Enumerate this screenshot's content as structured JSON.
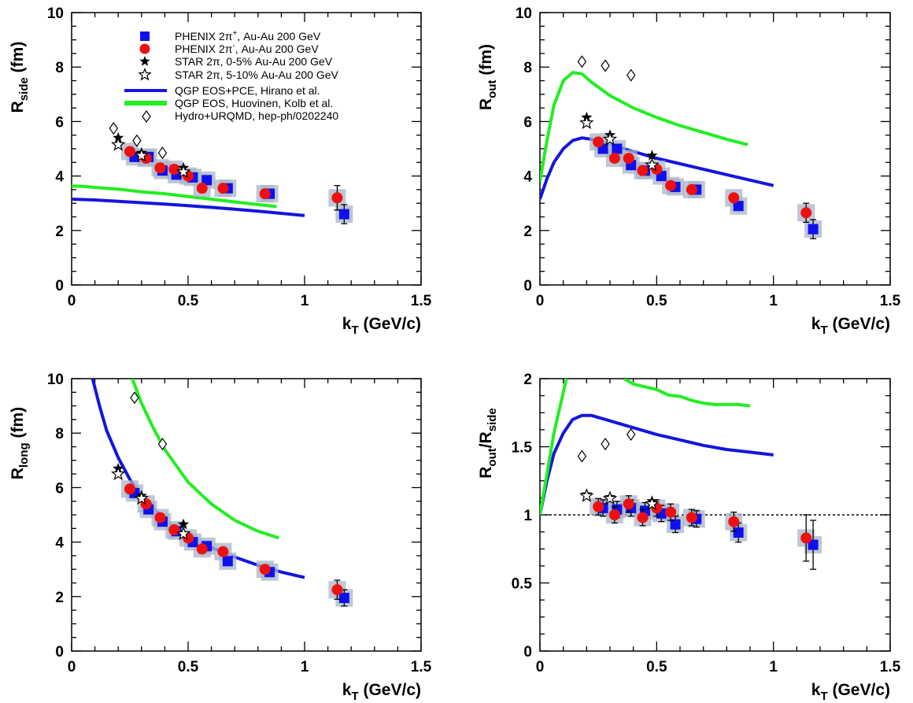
{
  "colors": {
    "phenix_plus": "#1010ee",
    "phenix_minus": "#ee1010",
    "qgp_pce": "#1515dd",
    "qgp_huovinen": "#22ee22",
    "syst_box": "#a8b4c8",
    "star": "#000000"
  },
  "legend": {
    "phenix_plus": {
      "pre": "PHENIX 2π",
      "sup": "+",
      "post": ", Au-Au 200 GeV"
    },
    "phenix_minus": {
      "pre": "PHENIX 2π",
      "sup": "-",
      "post": ", Au-Au 200 GeV"
    },
    "star_central": "STAR 2π, 0-5% Au-Au 200 GeV",
    "star_semi": "STAR 2π, 5-10% Au-Au 200 GeV",
    "qgp_pce": "QGP EOS+PCE, Hirano et al.",
    "qgp_huovinen": "QGP EOS, Huovinen, Kolb et al.",
    "urqmd": "Hydro+URQMD, hep-ph/0202240"
  },
  "chart_data": [
    {
      "id": "rside",
      "type": "scatter",
      "ylabel": {
        "main": "R",
        "sub": "side",
        "post": " (fm)"
      },
      "xlabel": {
        "main": "k",
        "sub": "T",
        "post": " (GeV/c)"
      },
      "xlim": [
        0,
        1.5
      ],
      "ylim": [
        0,
        10
      ],
      "xticks": [
        0,
        0.5,
        1,
        1.5
      ],
      "xtick_labels": [
        "0",
        "0.5",
        "1",
        "1.5"
      ],
      "yticks": [
        0,
        2,
        4,
        6,
        8,
        10
      ],
      "ytick_labels": [
        "0",
        "2",
        "4",
        "6",
        "8",
        "10"
      ],
      "reference_line": null,
      "series": [
        {
          "name": "PHENIX 2π+",
          "marker": "square",
          "x": [
            0.27,
            0.33,
            0.39,
            0.45,
            0.52,
            0.58,
            0.67,
            0.85,
            1.17
          ],
          "y": [
            4.7,
            4.7,
            4.2,
            4.05,
            3.95,
            3.85,
            3.55,
            3.35,
            2.6
          ],
          "err": [
            0,
            0,
            0,
            0,
            0,
            0,
            0,
            0,
            0.35
          ]
        },
        {
          "name": "PHENIX 2π-",
          "marker": "circle",
          "x": [
            0.25,
            0.32,
            0.38,
            0.44,
            0.5,
            0.56,
            0.65,
            0.83,
            1.14
          ],
          "y": [
            4.9,
            4.65,
            4.3,
            4.25,
            4.0,
            3.55,
            3.55,
            3.35,
            3.2
          ],
          "err": [
            0,
            0,
            0,
            0,
            0,
            0,
            0,
            0,
            0.45
          ]
        },
        {
          "name": "STAR 2π 0-5%",
          "marker": "star-filled",
          "x": [
            0.2,
            0.3,
            0.48
          ],
          "y": [
            5.4,
            4.85,
            4.3
          ]
        },
        {
          "name": "STAR 2π 5-10%",
          "marker": "star-open",
          "x": [
            0.2,
            0.3,
            0.48
          ],
          "y": [
            5.15,
            4.75,
            4.15
          ]
        },
        {
          "name": "Hydro+URQMD",
          "marker": "diamond",
          "x": [
            0.18,
            0.28,
            0.39
          ],
          "y": [
            5.75,
            5.3,
            4.85
          ]
        },
        {
          "name": "QGP EOS+PCE",
          "type": "line",
          "color_key": "qgp_pce",
          "x": [
            0,
            0.1,
            0.2,
            0.3,
            0.4,
            0.5,
            0.6,
            0.7,
            0.8,
            0.9,
            1.0
          ],
          "y": [
            3.15,
            3.12,
            3.07,
            3.02,
            2.97,
            2.91,
            2.85,
            2.78,
            2.71,
            2.63,
            2.55
          ]
        },
        {
          "name": "QGP EOS Huovinen",
          "type": "line",
          "color_key": "qgp_huovinen",
          "x": [
            0,
            0.05,
            0.1,
            0.15,
            0.2,
            0.3,
            0.4,
            0.5,
            0.6,
            0.7,
            0.8,
            0.88
          ],
          "y": [
            3.63,
            3.62,
            3.58,
            3.55,
            3.52,
            3.42,
            3.35,
            3.25,
            3.15,
            3.05,
            2.95,
            2.88
          ]
        }
      ]
    },
    {
      "id": "rout",
      "type": "scatter",
      "ylabel": {
        "main": "R",
        "sub": "out",
        "post": " (fm)"
      },
      "xlabel": {
        "main": "k",
        "sub": "T",
        "post": " (GeV/c)"
      },
      "xlim": [
        0,
        1.5
      ],
      "ylim": [
        0,
        10
      ],
      "xticks": [
        0,
        0.5,
        1,
        1.5
      ],
      "xtick_labels": [
        "0",
        "0.5",
        "1",
        "1.5"
      ],
      "yticks": [
        0,
        2,
        4,
        6,
        8,
        10
      ],
      "ytick_labels": [
        "0",
        "2",
        "4",
        "6",
        "8",
        "10"
      ],
      "reference_line": null,
      "series": [
        {
          "name": "PHENIX 2π+",
          "marker": "square",
          "x": [
            0.27,
            0.33,
            0.39,
            0.45,
            0.52,
            0.58,
            0.67,
            0.85,
            1.17
          ],
          "y": [
            5.0,
            5.0,
            4.4,
            4.2,
            4.0,
            3.6,
            3.5,
            2.9,
            2.05
          ],
          "err": [
            0,
            0,
            0,
            0,
            0,
            0,
            0,
            0,
            0.35
          ]
        },
        {
          "name": "PHENIX 2π-",
          "marker": "circle",
          "x": [
            0.25,
            0.32,
            0.38,
            0.44,
            0.5,
            0.56,
            0.65,
            0.83,
            1.14
          ],
          "y": [
            5.25,
            4.65,
            4.65,
            4.2,
            4.25,
            3.65,
            3.5,
            3.2,
            2.65
          ],
          "err": [
            0,
            0,
            0,
            0,
            0,
            0,
            0,
            0,
            0.35
          ]
        },
        {
          "name": "STAR 2π 0-5%",
          "marker": "star-filled",
          "x": [
            0.2,
            0.3,
            0.48
          ],
          "y": [
            6.15,
            5.5,
            4.75
          ]
        },
        {
          "name": "STAR 2π 5-10%",
          "marker": "star-open",
          "x": [
            0.2,
            0.3,
            0.48
          ],
          "y": [
            5.95,
            5.35,
            4.4
          ]
        },
        {
          "name": "Hydro+URQMD",
          "marker": "diamond",
          "x": [
            0.18,
            0.28,
            0.39
          ],
          "y": [
            8.2,
            8.05,
            7.7
          ]
        },
        {
          "name": "QGP EOS+PCE",
          "type": "line",
          "color_key": "qgp_pce",
          "x": [
            0,
            0.03,
            0.06,
            0.1,
            0.14,
            0.18,
            0.22,
            0.3,
            0.4,
            0.5,
            0.6,
            0.7,
            0.8,
            0.9,
            1.0
          ],
          "y": [
            3.15,
            3.9,
            4.5,
            5.0,
            5.3,
            5.4,
            5.35,
            5.15,
            4.9,
            4.65,
            4.45,
            4.25,
            4.05,
            3.85,
            3.65
          ]
        },
        {
          "name": "QGP EOS Huovinen",
          "type": "line",
          "color_key": "qgp_huovinen",
          "x": [
            0,
            0.03,
            0.06,
            0.1,
            0.14,
            0.18,
            0.22,
            0.3,
            0.4,
            0.5,
            0.6,
            0.7,
            0.8,
            0.89
          ],
          "y": [
            3.8,
            5.3,
            6.6,
            7.5,
            7.8,
            7.75,
            7.45,
            6.95,
            6.5,
            6.15,
            5.85,
            5.6,
            5.35,
            5.15
          ]
        }
      ]
    },
    {
      "id": "rlong",
      "type": "scatter",
      "ylabel": {
        "main": "R",
        "sub": "long",
        "post": " (fm)"
      },
      "xlabel": {
        "main": "k",
        "sub": "T",
        "post": " (GeV/c)"
      },
      "xlim": [
        0,
        1.5
      ],
      "ylim": [
        0,
        10
      ],
      "xticks": [
        0,
        0.5,
        1,
        1.5
      ],
      "xtick_labels": [
        "0",
        "0.5",
        "1",
        "1.5"
      ],
      "yticks": [
        0,
        2,
        4,
        6,
        8,
        10
      ],
      "ytick_labels": [
        "0",
        "2",
        "4",
        "6",
        "8",
        "10"
      ],
      "reference_line": null,
      "series": [
        {
          "name": "PHENIX 2π+",
          "marker": "square",
          "x": [
            0.27,
            0.33,
            0.39,
            0.45,
            0.52,
            0.58,
            0.67,
            0.85,
            1.17
          ],
          "y": [
            5.8,
            5.2,
            4.75,
            4.4,
            4.0,
            3.85,
            3.3,
            2.9,
            1.95
          ],
          "err": [
            0,
            0,
            0,
            0,
            0,
            0,
            0,
            0,
            0.3
          ]
        },
        {
          "name": "PHENIX 2π-",
          "marker": "circle",
          "x": [
            0.25,
            0.32,
            0.38,
            0.44,
            0.5,
            0.56,
            0.65,
            0.83,
            1.14
          ],
          "y": [
            5.95,
            5.4,
            4.9,
            4.45,
            4.15,
            3.75,
            3.65,
            3.0,
            2.25
          ],
          "err": [
            0,
            0,
            0,
            0,
            0,
            0,
            0,
            0,
            0.35
          ]
        },
        {
          "name": "STAR 2π 0-5%",
          "marker": "star-filled",
          "x": [
            0.2,
            0.3,
            0.48
          ],
          "y": [
            6.7,
            5.7,
            4.65
          ]
        },
        {
          "name": "STAR 2π 5-10%",
          "marker": "star-open",
          "x": [
            0.2,
            0.3,
            0.48
          ],
          "y": [
            6.5,
            5.6,
            4.3
          ]
        },
        {
          "name": "Hydro+URQMD",
          "marker": "diamond",
          "x": [
            0.27,
            0.39
          ],
          "y": [
            9.3,
            7.6
          ]
        },
        {
          "name": "QGP EOS+PCE",
          "type": "line",
          "color_key": "qgp_pce",
          "x": [
            0.09,
            0.12,
            0.15,
            0.2,
            0.25,
            0.3,
            0.4,
            0.5,
            0.6,
            0.7,
            0.8,
            0.9,
            1.0
          ],
          "y": [
            10.0,
            9.0,
            8.1,
            7.1,
            6.3,
            5.7,
            4.8,
            4.2,
            3.8,
            3.45,
            3.15,
            2.9,
            2.7
          ]
        },
        {
          "name": "QGP EOS Huovinen",
          "type": "line",
          "color_key": "qgp_huovinen",
          "x": [
            0.26,
            0.3,
            0.35,
            0.4,
            0.5,
            0.6,
            0.7,
            0.8,
            0.89
          ],
          "y": [
            10.0,
            9.1,
            8.2,
            7.4,
            6.2,
            5.4,
            4.8,
            4.4,
            4.15
          ]
        }
      ]
    },
    {
      "id": "ratio",
      "type": "scatter",
      "ylabel": {
        "main": "R",
        "sub": "out",
        "mid": "/R",
        "sub2": "side",
        "post": ""
      },
      "xlabel": {
        "main": "k",
        "sub": "T",
        "post": " (GeV/c)"
      },
      "xlim": [
        0,
        1.5
      ],
      "ylim": [
        0,
        2
      ],
      "xticks": [
        0,
        0.5,
        1,
        1.5
      ],
      "xtick_labels": [
        "0",
        "0.5",
        "1",
        "1.5"
      ],
      "yticks": [
        0,
        0.5,
        1,
        1.5,
        2
      ],
      "ytick_labels": [
        "0",
        "0.5",
        "1",
        "1.5",
        "2"
      ],
      "reference_line": 1,
      "series": [
        {
          "name": "PHENIX 2π+",
          "marker": "square",
          "x": [
            0.27,
            0.33,
            0.39,
            0.45,
            0.52,
            0.58,
            0.67,
            0.85,
            1.17
          ],
          "y": [
            1.05,
            1.04,
            1.05,
            1.03,
            1.01,
            0.93,
            0.97,
            0.87,
            0.78
          ],
          "err": [
            0.06,
            0.06,
            0.06,
            0.06,
            0.06,
            0.06,
            0.06,
            0.07,
            0.18
          ]
        },
        {
          "name": "PHENIX 2π-",
          "marker": "circle",
          "x": [
            0.25,
            0.32,
            0.38,
            0.44,
            0.5,
            0.56,
            0.65,
            0.83,
            1.14
          ],
          "y": [
            1.06,
            1.0,
            1.08,
            0.98,
            1.05,
            1.02,
            0.98,
            0.95,
            0.83
          ],
          "err": [
            0.06,
            0.06,
            0.06,
            0.06,
            0.06,
            0.06,
            0.06,
            0.07,
            0.17
          ]
        },
        {
          "name": "STAR 2π 0-5%",
          "marker": "star-filled",
          "x": [
            0.2,
            0.3,
            0.48
          ],
          "y": [
            1.15,
            1.13,
            1.1
          ]
        },
        {
          "name": "STAR 2π 5-10%",
          "marker": "star-open",
          "x": [
            0.2,
            0.3,
            0.48
          ],
          "y": [
            1.14,
            1.12,
            1.08
          ]
        },
        {
          "name": "Hydro+URQMD",
          "marker": "diamond",
          "x": [
            0.18,
            0.28,
            0.39
          ],
          "y": [
            1.43,
            1.52,
            1.59
          ]
        },
        {
          "name": "QGP EOS+PCE",
          "type": "line",
          "color_key": "qgp_pce",
          "x": [
            0,
            0.03,
            0.06,
            0.1,
            0.14,
            0.18,
            0.22,
            0.3,
            0.4,
            0.5,
            0.6,
            0.7,
            0.8,
            0.9,
            1.0
          ],
          "y": [
            1.0,
            1.25,
            1.45,
            1.6,
            1.7,
            1.73,
            1.73,
            1.69,
            1.64,
            1.59,
            1.55,
            1.51,
            1.48,
            1.46,
            1.44
          ]
        },
        {
          "name": "QGP EOS Huovinen",
          "type": "line",
          "color_key": "qgp_huovinen",
          "x": [
            0,
            0.03,
            0.06,
            0.1,
            0.113
          ],
          "y": [
            1.0,
            1.3,
            1.6,
            1.9,
            2.0
          ]
        },
        {
          "name": "QGP EOS Huovinen (cont.)",
          "type": "line",
          "color_key": "qgp_huovinen",
          "x": [
            0.36,
            0.4,
            0.5,
            0.55,
            0.6,
            0.65,
            0.7,
            0.75,
            0.8,
            0.85,
            0.9
          ],
          "y": [
            2.0,
            1.96,
            1.92,
            1.88,
            1.87,
            1.84,
            1.82,
            1.81,
            1.81,
            1.81,
            1.8
          ]
        }
      ]
    }
  ]
}
